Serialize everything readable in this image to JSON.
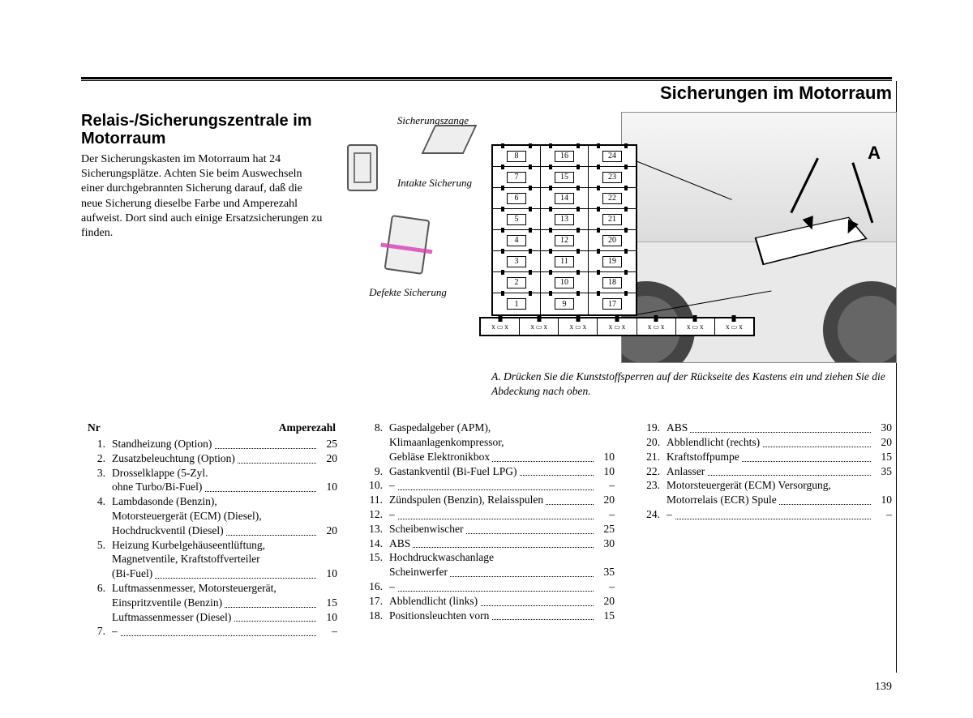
{
  "header": {
    "page_title": "Sicherungen im Motorraum"
  },
  "section": {
    "title": "Relais-/Sicherungszentrale im Motorraum",
    "intro": "Der Sicherungskasten im Motorraum hat 24 Sicherungsplätze. Achten Sie beim Auswechseln einer durchgebrannten Sicherung darauf, daß die neue Sicherung dieselbe Farbe und Amperezahl aufweist. Dort sind auch einige Ersatzsicherungen zu finden."
  },
  "fuse_labels": {
    "pliers": "Sicherungszange",
    "intact": "Intakte Sicherung",
    "defect": "Defekte Sicherung"
  },
  "diagram": {
    "label_A": "A",
    "grid": [
      [
        "8",
        "16",
        "24"
      ],
      [
        "7",
        "15",
        "23"
      ],
      [
        "6",
        "14",
        "22"
      ],
      [
        "5",
        "13",
        "21"
      ],
      [
        "4",
        "12",
        "20"
      ],
      [
        "3",
        "11",
        "19"
      ],
      [
        "2",
        "10",
        "18"
      ],
      [
        "1",
        "9",
        "17"
      ]
    ],
    "spare_labels": [
      "x",
      "x",
      "x",
      "x",
      "x",
      "x",
      "x"
    ],
    "caption": "A. Drücken Sie die Kunststoffsperren auf der Rückseite des Kastens ein und ziehen Sie die Abdeckung nach oben."
  },
  "table": {
    "header_nr": "Nr",
    "header_amp": "Amperezahl",
    "col1": [
      {
        "n": "1.",
        "lines": [
          "Standheizung (Option)"
        ],
        "amp": "25"
      },
      {
        "n": "2.",
        "lines": [
          "Zusatzbeleuchtung (Option)"
        ],
        "amp": "20"
      },
      {
        "n": "3.",
        "lines": [
          "Drosselklappe (5-Zyl.",
          "ohne Turbo/Bi-Fuel)"
        ],
        "amp": "10"
      },
      {
        "n": "4.",
        "lines": [
          "Lambdasonde (Benzin),",
          "Motorsteuergerät (ECM) (Diesel),",
          "Hochdruckventil (Diesel)"
        ],
        "amp": "20"
      },
      {
        "n": "5.",
        "lines": [
          "Heizung Kurbelgehäuseentlüftung,",
          "Magnetventile, Kraftstoffverteiler",
          "(Bi-Fuel)"
        ],
        "amp": "10"
      },
      {
        "n": "6.",
        "lines": [
          "Luftmassenmesser, Motorsteuergerät,",
          "Einspritzventile (Benzin)"
        ],
        "amp": "15"
      },
      {
        "n": "",
        "lines": [
          "Luftmassenmesser (Diesel)"
        ],
        "amp": "10"
      },
      {
        "n": "7.",
        "lines": [
          "–"
        ],
        "amp": "–"
      }
    ],
    "col2": [
      {
        "n": "8.",
        "lines": [
          "Gaspedalgeber (APM),",
          "Klimaanlagenkompressor,",
          "Gebläse Elektronikbox"
        ],
        "amp": "10"
      },
      {
        "n": "9.",
        "lines": [
          "Gastankventil (Bi-Fuel LPG)"
        ],
        "amp": "10"
      },
      {
        "n": "10.",
        "lines": [
          "–"
        ],
        "amp": "–"
      },
      {
        "n": "11.",
        "lines": [
          "Zündspulen (Benzin), Relaisspulen"
        ],
        "amp": "20"
      },
      {
        "n": "12.",
        "lines": [
          "–"
        ],
        "amp": "–"
      },
      {
        "n": "13.",
        "lines": [
          "Scheibenwischer"
        ],
        "amp": "25"
      },
      {
        "n": "14.",
        "lines": [
          "ABS"
        ],
        "amp": "30"
      },
      {
        "n": "15.",
        "lines": [
          "Hochdruckwaschanlage",
          "Scheinwerfer"
        ],
        "amp": "35"
      },
      {
        "n": "16.",
        "lines": [
          "–"
        ],
        "amp": "–"
      },
      {
        "n": "17.",
        "lines": [
          "Abblendlicht (links)"
        ],
        "amp": "20"
      },
      {
        "n": "18.",
        "lines": [
          "Positionsleuchten vorn"
        ],
        "amp": "15"
      }
    ],
    "col3": [
      {
        "n": "19.",
        "lines": [
          "ABS"
        ],
        "amp": "30"
      },
      {
        "n": "20.",
        "lines": [
          "Abblendlicht (rechts)"
        ],
        "amp": "20"
      },
      {
        "n": "21.",
        "lines": [
          "Kraftstoffpumpe"
        ],
        "amp": "15"
      },
      {
        "n": "22.",
        "lines": [
          "Anlasser"
        ],
        "amp": "35"
      },
      {
        "n": "23.",
        "lines": [
          "Motorsteuergerät (ECM) Versorgung,",
          "Motorrelais (ECR) Spule"
        ],
        "amp": "10"
      },
      {
        "n": "24.",
        "lines": [
          "–"
        ],
        "amp": "–"
      }
    ]
  },
  "page_number": "139"
}
